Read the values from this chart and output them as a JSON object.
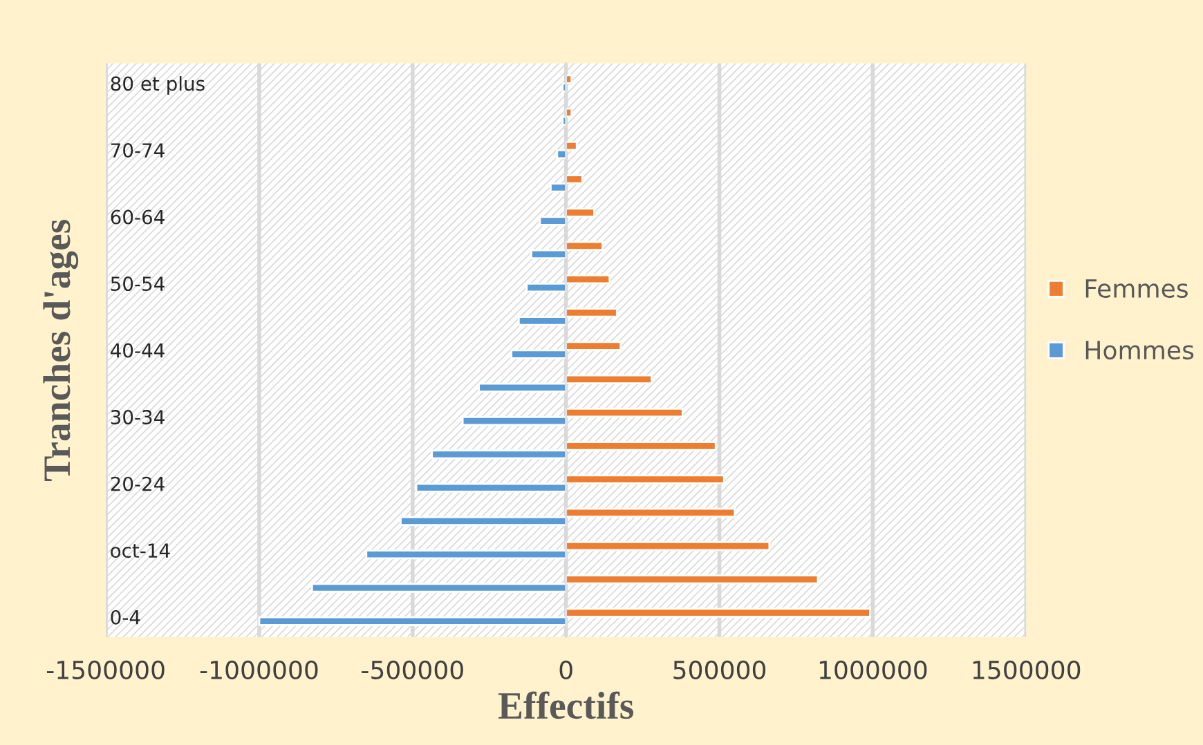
{
  "chart_data": {
    "type": "bar",
    "orientation": "horizontal",
    "xlabel": "Effectifs",
    "ylabel": "Tranches d'ages",
    "categories": [
      "80 et plus",
      null,
      "70-74",
      null,
      "60-64",
      null,
      "50-54",
      null,
      "40-44",
      null,
      "30-34",
      null,
      "20-24",
      null,
      "oct-14",
      null,
      "0-4"
    ],
    "series": [
      {
        "name": "Hommes",
        "color": "#5b9bd5",
        "values": [
          -11000,
          -11000,
          -29000,
          -50000,
          -85000,
          -113000,
          -128000,
          -154000,
          -178000,
          -284000,
          -337000,
          -437000,
          -488000,
          -539000,
          -651000,
          -828000,
          -1000000
        ]
      },
      {
        "name": "Femmes",
        "color": "#ed7d31",
        "values": [
          18000,
          18000,
          35000,
          53000,
          92000,
          119000,
          142000,
          166000,
          178000,
          279000,
          380000,
          488000,
          515000,
          550000,
          663000,
          821000,
          991000
        ]
      }
    ],
    "xlim": [
      -1500000,
      1500000
    ],
    "xticks": [
      -1500000,
      -1000000,
      -500000,
      0,
      500000,
      1000000,
      1500000
    ],
    "grid": "x",
    "legend": "right"
  }
}
